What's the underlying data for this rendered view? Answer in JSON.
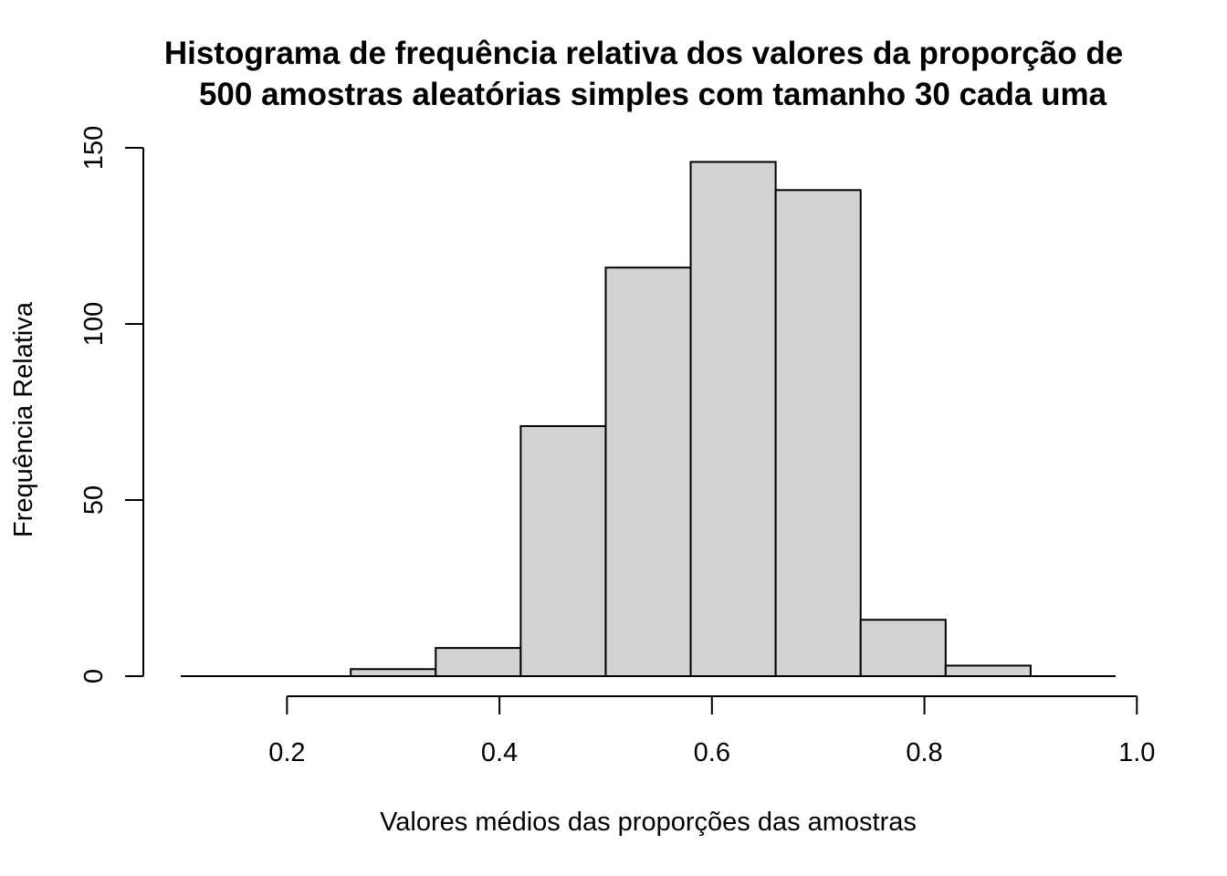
{
  "chart_data": {
    "type": "bar",
    "title_lines": [
      "Histograma de frequência relativa dos valores da proporção de",
      "500 amostras aleatórias simples com tamanho 30 cada uma"
    ],
    "xlabel": "Valores médios das proporções das amostras",
    "ylabel": "Frequência Relativa",
    "bins": [
      {
        "start": 0.1,
        "end": 0.18,
        "value": 0
      },
      {
        "start": 0.18,
        "end": 0.26,
        "value": 0
      },
      {
        "start": 0.26,
        "end": 0.34,
        "value": 2
      },
      {
        "start": 0.34,
        "end": 0.42,
        "value": 8
      },
      {
        "start": 0.42,
        "end": 0.5,
        "value": 71
      },
      {
        "start": 0.5,
        "end": 0.58,
        "value": 116
      },
      {
        "start": 0.58,
        "end": 0.66,
        "value": 146
      },
      {
        "start": 0.66,
        "end": 0.74,
        "value": 138
      },
      {
        "start": 0.74,
        "end": 0.82,
        "value": 16
      },
      {
        "start": 0.82,
        "end": 0.9,
        "value": 3
      },
      {
        "start": 0.9,
        "end": 0.98,
        "value": 0
      }
    ],
    "xlim": [
      0.1,
      0.98
    ],
    "ylim": [
      0,
      150
    ],
    "x_ticks": [
      0.2,
      0.4,
      0.6,
      0.8,
      1.0
    ],
    "x_tick_labels": [
      "0.2",
      "0.4",
      "0.6",
      "0.8",
      "1.0"
    ],
    "y_ticks": [
      0,
      50,
      100,
      150
    ],
    "y_tick_labels": [
      "0",
      "50",
      "100",
      "150"
    ],
    "grid": false,
    "bar_fill": "#d3d3d3",
    "bar_stroke": "#000000"
  }
}
